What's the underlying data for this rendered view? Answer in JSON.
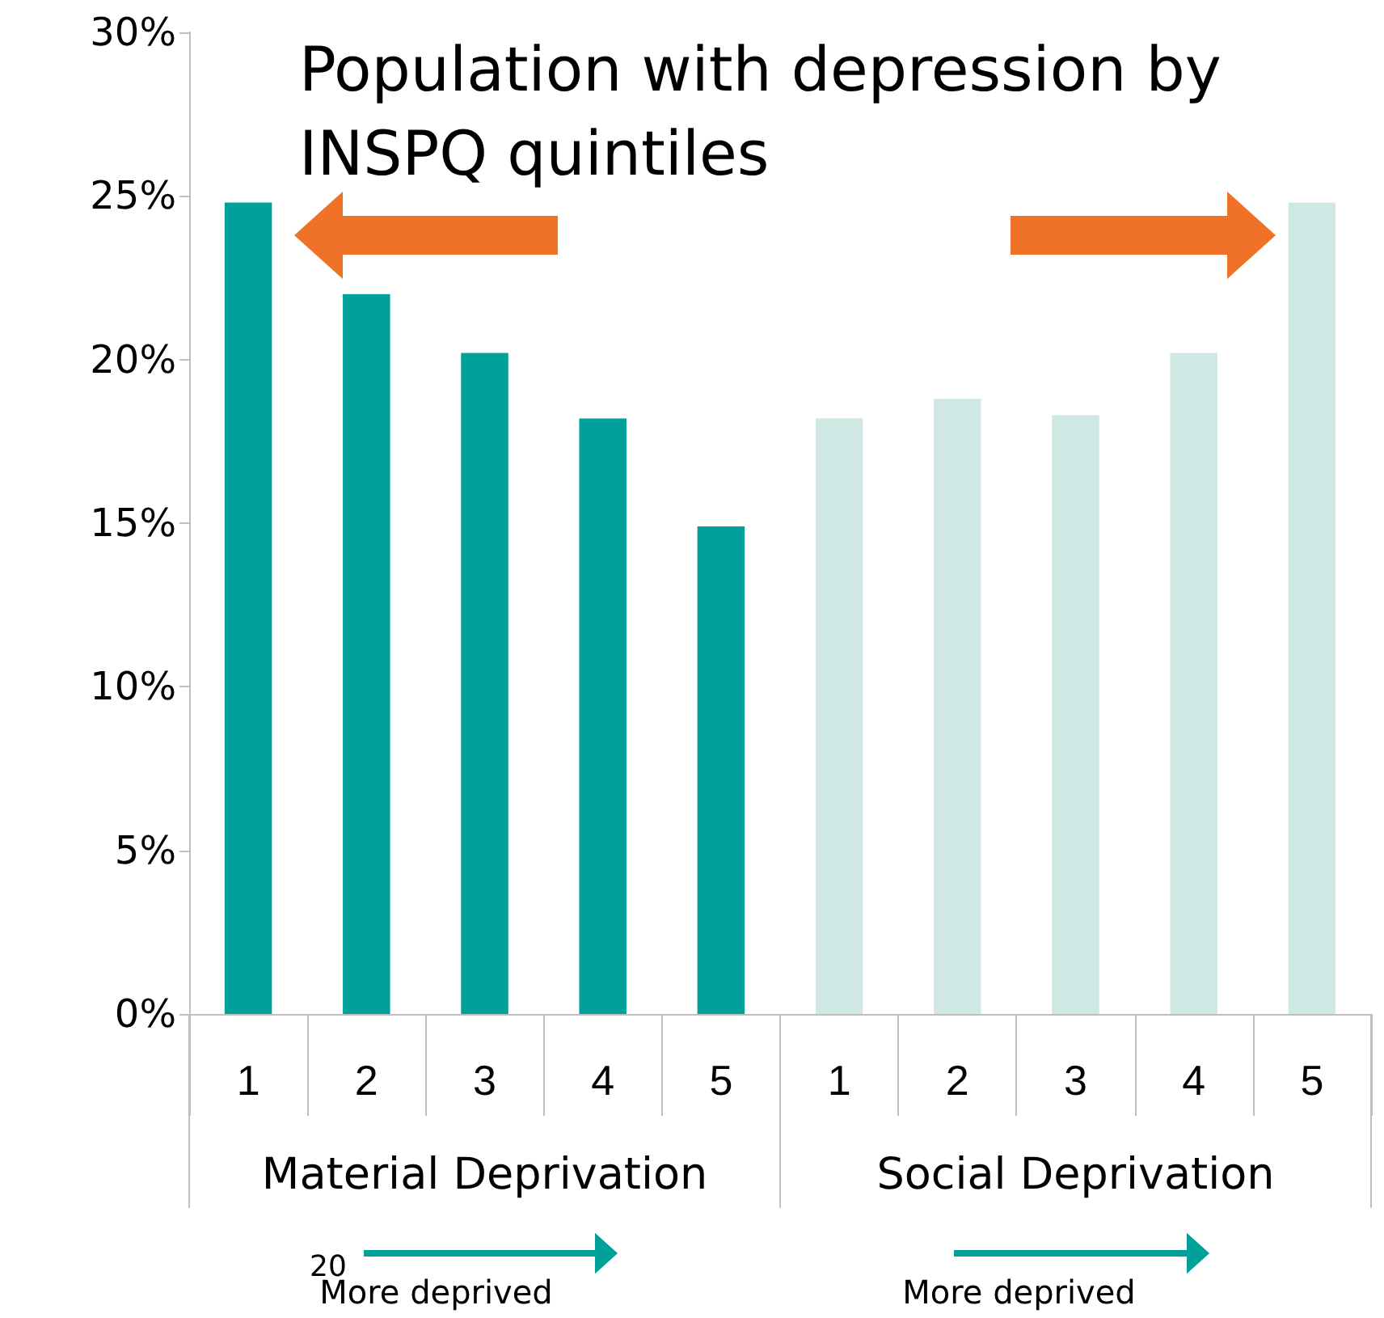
{
  "chart_data": {
    "type": "bar",
    "title": "Population with depression by INSPQ quintiles",
    "categories": [
      "1",
      "2",
      "3",
      "4",
      "5",
      "1",
      "2",
      "3",
      "4",
      "5"
    ],
    "values": [
      24.8,
      22.0,
      20.2,
      18.2,
      14.9,
      18.2,
      18.8,
      18.3,
      20.2,
      24.8
    ],
    "colors": [
      "#00a19a",
      "#00a19a",
      "#00a19a",
      "#00a19a",
      "#00a19a",
      "#cfe8e4",
      "#cfe8e4",
      "#cfe8e4",
      "#cfe8e4",
      "#cfe8e4"
    ],
    "ylim": [
      0,
      30
    ],
    "yticks": [
      {
        "value": 0,
        "label": "0%"
      },
      {
        "value": 5,
        "label": "5%"
      },
      {
        "value": 10,
        "label": "10%"
      },
      {
        "value": 15,
        "label": "15%"
      },
      {
        "value": 20,
        "label": "20%"
      },
      {
        "value": 25,
        "label": "25%"
      },
      {
        "value": 30,
        "label": "30%"
      }
    ],
    "grid": false,
    "annotations": [
      "Material Deprivation",
      "Social Deprivation",
      "More deprived",
      "More deprived",
      "20"
    ]
  }
}
